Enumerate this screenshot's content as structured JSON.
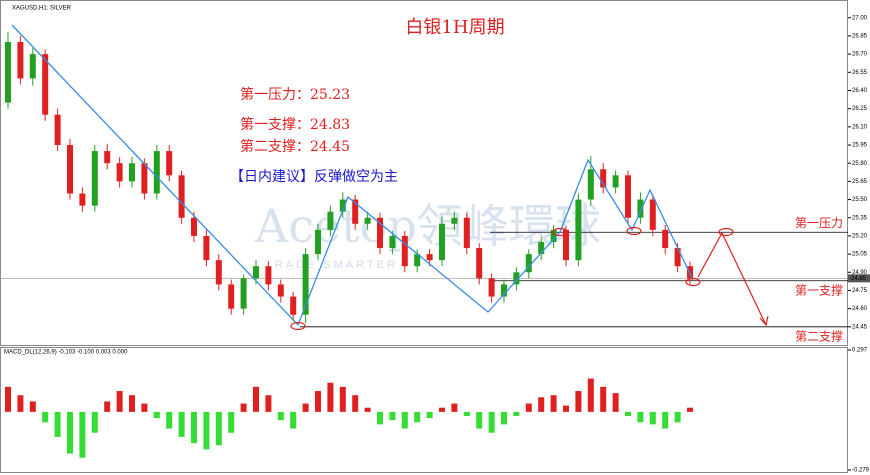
{
  "chart_data": {
    "type": "candlestick",
    "symbol": "XAGUSD,H1: SILVER",
    "title": "白银1H周期",
    "annotations": [
      "第一压力：25.23",
      "第一支撑：24.83",
      "第二支撑：24.45"
    ],
    "advice": "【日内建议】反弹做空为主",
    "watermark": "Acetop領峰環球",
    "watermark_sub": "TRADE SMARTER",
    "levels": [
      {
        "label": "第一压力",
        "value": 25.23
      },
      {
        "label": "第一支撑",
        "value": 24.83
      },
      {
        "label": "第二支撑",
        "value": 24.45
      }
    ],
    "last_price": 24.85,
    "up_color": "#22a022",
    "down_color": "#e02020",
    "open": [
      26.3,
      26.8,
      26.5,
      26.7,
      26.2,
      25.95,
      25.55,
      25.45,
      25.9,
      25.8,
      25.65,
      25.8,
      25.55,
      25.9,
      25.7,
      25.35,
      25.2,
      25.0,
      24.8,
      24.6,
      24.85,
      24.95,
      24.8,
      24.7,
      24.55,
      25.05,
      25.25,
      25.4,
      25.5,
      25.3,
      25.35,
      25.1,
      25.2,
      24.95,
      25.05,
      25.0,
      25.3,
      25.35,
      25.1,
      24.85,
      24.7,
      24.8,
      24.9,
      25.05,
      25.15,
      25.25,
      25.0,
      25.5,
      25.75,
      25.6,
      25.7,
      25.35,
      25.5,
      25.25,
      25.1,
      24.95
    ],
    "high": [
      26.88,
      26.85,
      26.75,
      26.74,
      26.25,
      26.0,
      25.6,
      25.95,
      25.96,
      25.85,
      25.85,
      25.84,
      25.95,
      25.95,
      25.74,
      25.4,
      25.25,
      25.05,
      24.84,
      24.88,
      25.0,
      24.99,
      24.84,
      24.74,
      25.1,
      25.3,
      25.45,
      25.56,
      25.54,
      25.4,
      25.39,
      25.24,
      25.24,
      25.09,
      25.09,
      25.36,
      25.4,
      25.39,
      25.14,
      24.89,
      24.84,
      24.94,
      25.09,
      25.19,
      25.29,
      25.28,
      25.55,
      25.86,
      25.8,
      25.74,
      25.74,
      25.56,
      25.54,
      25.29,
      25.14,
      24.99
    ],
    "low": [
      26.25,
      26.45,
      26.44,
      26.15,
      25.9,
      25.5,
      25.4,
      25.4,
      25.75,
      25.6,
      25.6,
      25.5,
      25.5,
      25.65,
      25.3,
      25.15,
      24.95,
      24.75,
      24.55,
      24.55,
      24.8,
      24.75,
      24.65,
      24.5,
      24.48,
      25.0,
      25.2,
      25.35,
      25.25,
      25.25,
      25.05,
      25.05,
      24.9,
      24.9,
      24.95,
      24.95,
      25.25,
      25.05,
      24.8,
      24.65,
      24.65,
      24.75,
      24.85,
      25.0,
      25.1,
      24.95,
      24.95,
      25.45,
      25.55,
      25.55,
      25.3,
      25.3,
      25.2,
      25.05,
      24.9,
      24.8
    ],
    "close": [
      26.8,
      26.5,
      26.7,
      26.2,
      25.95,
      25.55,
      25.45,
      25.9,
      25.8,
      25.65,
      25.8,
      25.55,
      25.9,
      25.7,
      25.35,
      25.2,
      25.0,
      24.8,
      24.6,
      24.85,
      24.95,
      24.8,
      24.7,
      24.55,
      25.05,
      25.25,
      25.4,
      25.5,
      25.3,
      25.35,
      25.1,
      25.2,
      24.95,
      25.05,
      25.0,
      25.3,
      25.35,
      25.1,
      24.85,
      24.7,
      24.8,
      24.9,
      25.05,
      25.15,
      25.25,
      25.0,
      25.5,
      25.75,
      25.6,
      25.7,
      25.35,
      25.5,
      25.25,
      25.1,
      24.95,
      24.85
    ],
    "ylim": [
      24.3,
      27.13
    ],
    "yticks": [
      {
        "value": 24.45,
        "label": "24.45"
      },
      {
        "value": 24.6,
        "label": "24.60"
      },
      {
        "value": 24.75,
        "label": "24.75"
      },
      {
        "value": 24.9,
        "label": "24.90"
      },
      {
        "value": 25.05,
        "label": "25.05"
      },
      {
        "value": 25.2,
        "label": "25.20"
      },
      {
        "value": 25.35,
        "label": "25.35"
      },
      {
        "value": 25.5,
        "label": "25.50"
      },
      {
        "value": 25.65,
        "label": "25.65"
      },
      {
        "value": 25.8,
        "label": "25.80"
      },
      {
        "value": 25.95,
        "label": "25.95"
      },
      {
        "value": 26.1,
        "label": "26.10"
      },
      {
        "value": 26.25,
        "label": "26.25"
      },
      {
        "value": 26.4,
        "label": "26.40"
      },
      {
        "value": 26.55,
        "label": "26.55"
      },
      {
        "value": 26.7,
        "label": "26.70"
      },
      {
        "value": 26.85,
        "label": "26.85"
      },
      {
        "value": 27.0,
        "label": "27.00"
      }
    ],
    "macd": {
      "label": "MACD_DL(12,26,9) -0.103 -0.100 0.003 0.000",
      "pos_color": "#e02020",
      "neg_color": "#33dd33",
      "ylim": [
        -0.279,
        0.297
      ],
      "yticks": [
        0.297,
        -0.279
      ],
      "values": [
        0.12,
        0.08,
        0.05,
        -0.05,
        -0.12,
        -0.2,
        -0.22,
        -0.1,
        0.05,
        0.1,
        0.08,
        0.04,
        -0.03,
        -0.08,
        -0.12,
        -0.15,
        -0.18,
        -0.16,
        -0.1,
        0.04,
        0.12,
        0.08,
        -0.04,
        -0.08,
        0.04,
        0.1,
        0.14,
        0.12,
        0.08,
        0.02,
        -0.06,
        -0.04,
        -0.08,
        -0.05,
        -0.03,
        0.02,
        0.04,
        -0.02,
        -0.08,
        -0.1,
        -0.06,
        -0.02,
        0.04,
        0.07,
        0.08,
        0.03,
        0.1,
        0.16,
        0.12,
        0.09,
        -0.02,
        -0.05,
        -0.06,
        -0.08,
        -0.05,
        0.02
      ]
    }
  }
}
